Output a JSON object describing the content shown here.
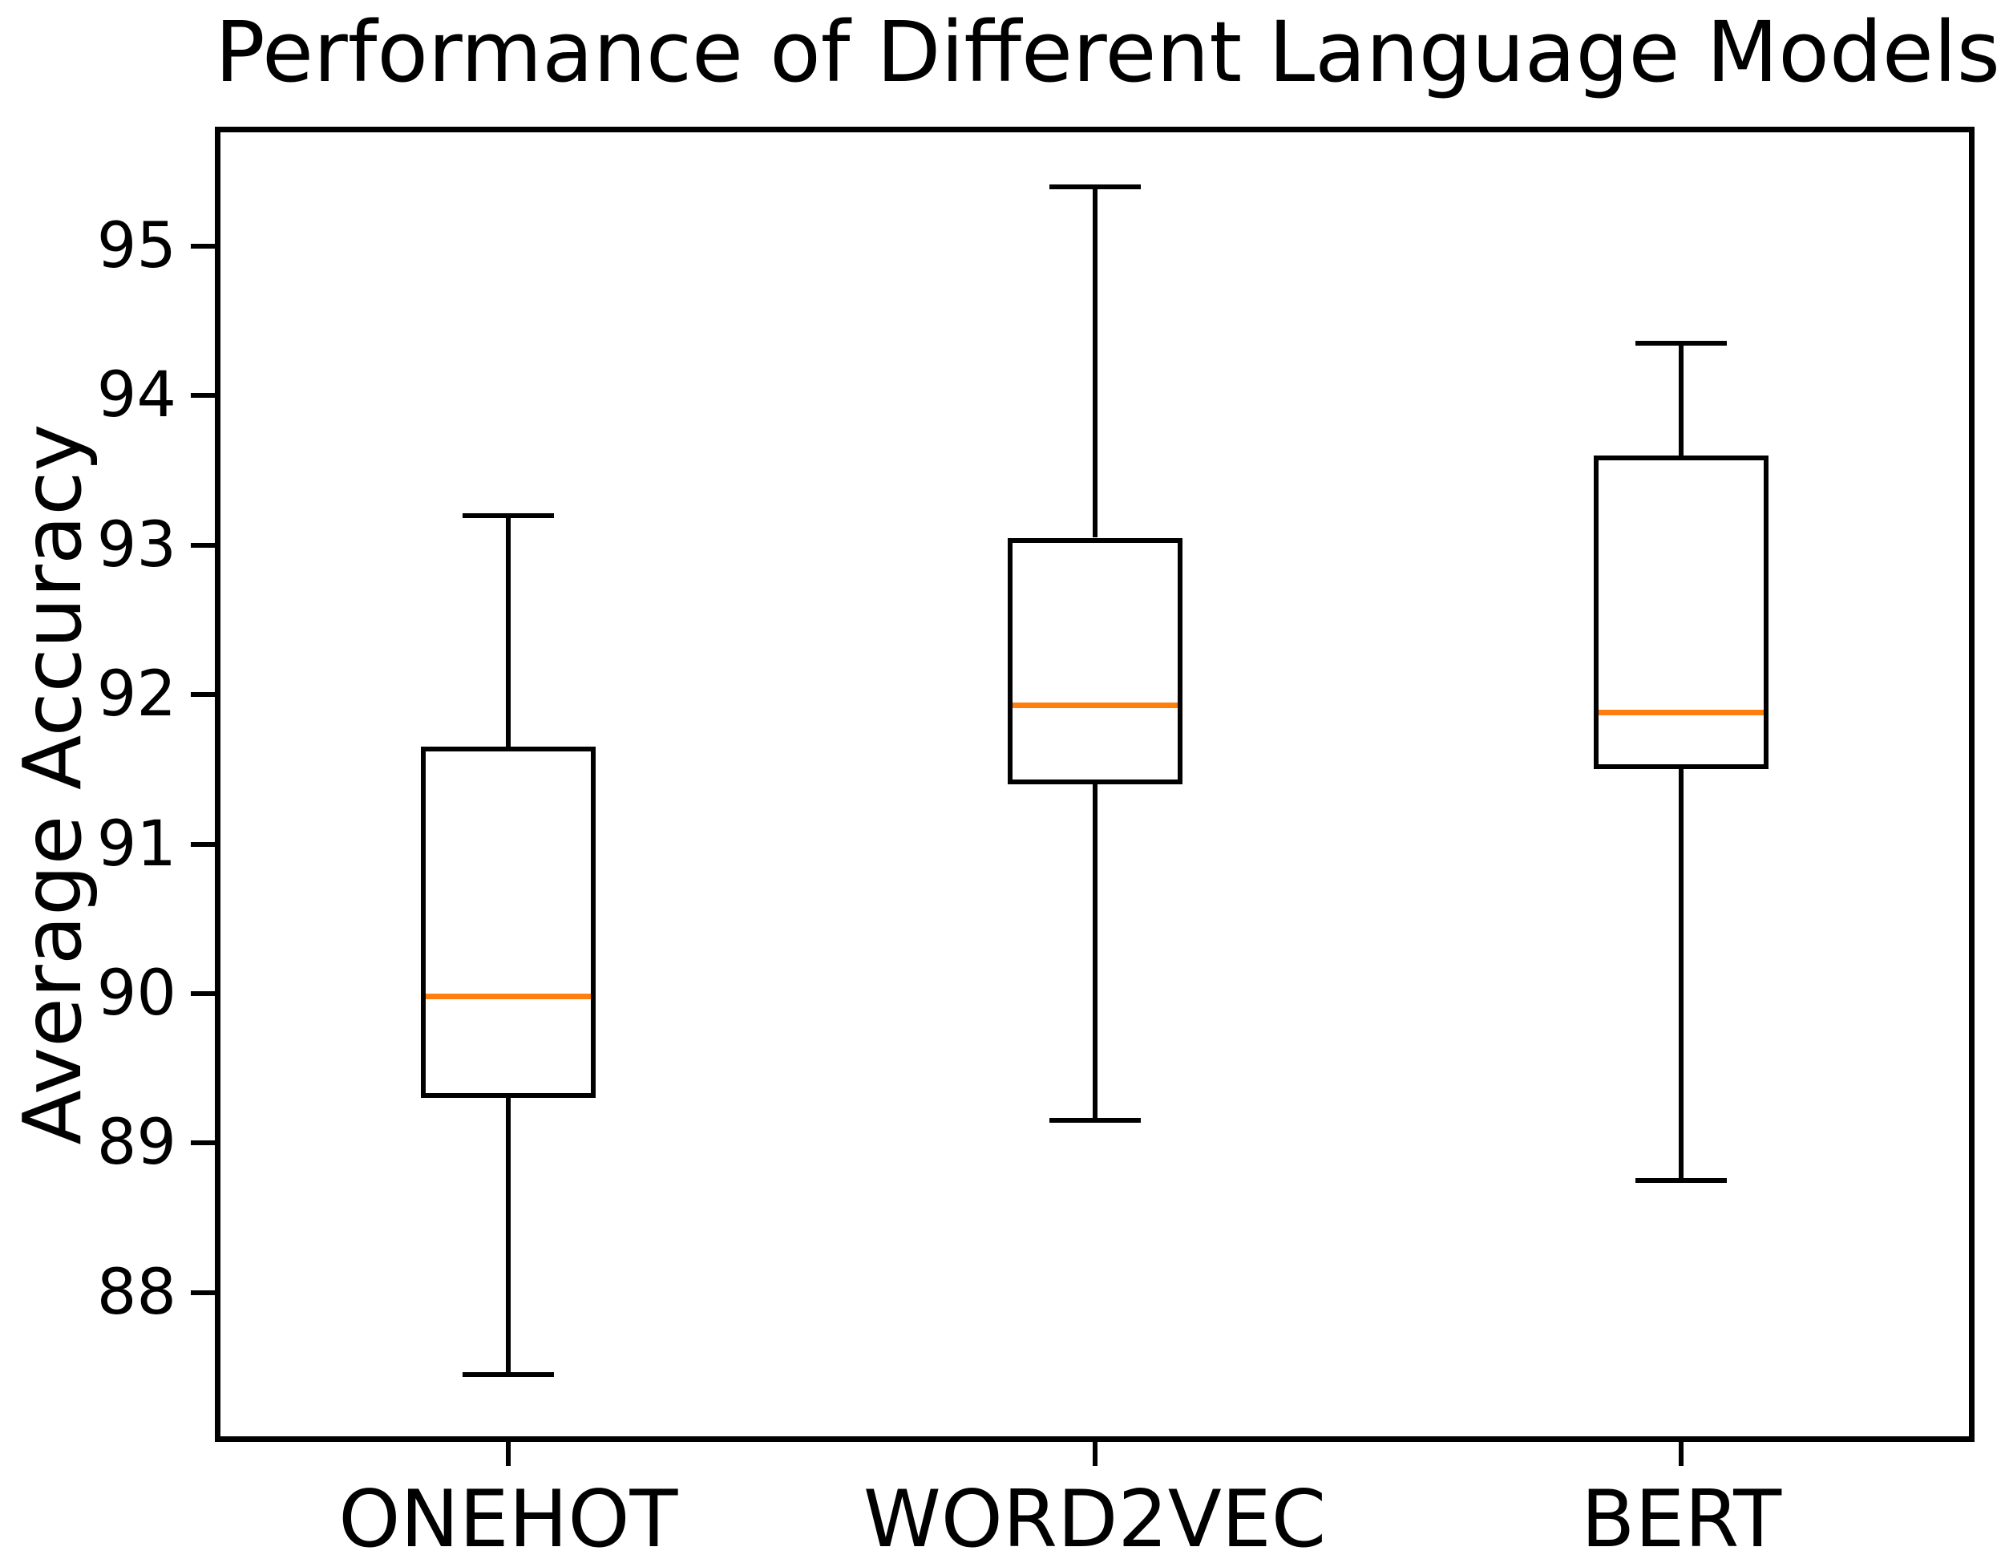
{
  "chart_data": {
    "type": "box",
    "title": "Performance of Different Language Models",
    "xlabel": "",
    "ylabel": "Average Accuracy",
    "categories": [
      "ONEHOT",
      "WORD2VEC",
      "BERT"
    ],
    "series": [
      {
        "label": "ONEHOT",
        "whislo": 87.45,
        "q1": 89.3,
        "med": 89.98,
        "q3": 91.65,
        "whishi": 93.2
      },
      {
        "label": "WORD2VEC",
        "whislo": 89.15,
        "q1": 91.4,
        "med": 91.93,
        "q3": 93.05,
        "whishi": 95.4
      },
      {
        "label": "BERT",
        "whislo": 88.75,
        "q1": 91.5,
        "med": 91.88,
        "q3": 93.6,
        "whishi": 94.35
      }
    ],
    "ylim": [
      87.0,
      95.8
    ],
    "yticks": [
      95,
      94,
      93,
      92,
      91,
      90,
      89,
      88
    ],
    "grid": false,
    "legend_visible": false,
    "colors": {
      "median": "#ff7f0e",
      "box_line": "#000000",
      "text": "#000000",
      "background": "#ffffff"
    }
  }
}
